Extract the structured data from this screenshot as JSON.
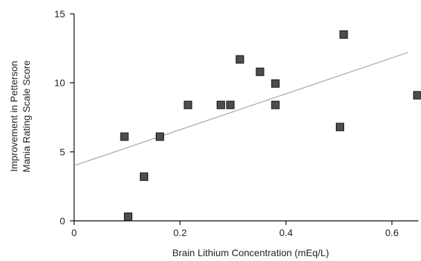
{
  "chart_data": {
    "type": "scatter",
    "xlabel": "Brain Lithium Concentration (mEq/L)",
    "ylabel_lines": [
      "Improvement in Petterson",
      "Mania Rating  Scale Score"
    ],
    "xlim": [
      0,
      0.65
    ],
    "ylim": [
      0,
      15
    ],
    "xticks": [
      0,
      0.2,
      0.4,
      0.6
    ],
    "xtick_labels": [
      "0",
      "0.2",
      "0.4",
      "0.6"
    ],
    "yticks": [
      0,
      5,
      10,
      15
    ],
    "ytick_labels": [
      "0",
      "5",
      "10",
      "15"
    ],
    "grid": false,
    "marker": "square",
    "marker_color": "#4d4d4d",
    "line_color": "#a8a8a8",
    "points": [
      {
        "x": 0.095,
        "y": 6.1
      },
      {
        "x": 0.102,
        "y": 0.3
      },
      {
        "x": 0.132,
        "y": 3.2
      },
      {
        "x": 0.162,
        "y": 6.1
      },
      {
        "x": 0.215,
        "y": 8.4
      },
      {
        "x": 0.277,
        "y": 8.4
      },
      {
        "x": 0.295,
        "y": 8.4
      },
      {
        "x": 0.313,
        "y": 11.7
      },
      {
        "x": 0.351,
        "y": 10.8
      },
      {
        "x": 0.38,
        "y": 9.95
      },
      {
        "x": 0.38,
        "y": 8.4
      },
      {
        "x": 0.502,
        "y": 6.8
      },
      {
        "x": 0.509,
        "y": 13.5
      },
      {
        "x": 0.648,
        "y": 9.1
      }
    ],
    "trendline": {
      "x": [
        0,
        0.63
      ],
      "y": [
        4.0,
        12.2
      ]
    }
  }
}
